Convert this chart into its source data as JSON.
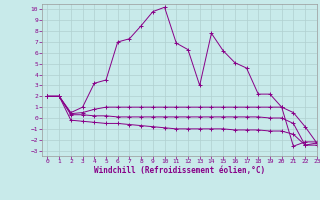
{
  "xlabel": "Windchill (Refroidissement éolien,°C)",
  "background_color": "#c8eaea",
  "grid_color": "#b0d0d0",
  "line_color": "#880088",
  "xlim": [
    -0.5,
    23
  ],
  "ylim": [
    -3.5,
    10.5
  ],
  "yticks": [
    -3,
    -2,
    -1,
    0,
    1,
    2,
    3,
    4,
    5,
    6,
    7,
    8,
    9,
    10
  ],
  "xticks": [
    0,
    1,
    2,
    3,
    4,
    5,
    6,
    7,
    8,
    9,
    10,
    11,
    12,
    13,
    14,
    15,
    16,
    17,
    18,
    19,
    20,
    21,
    22,
    23
  ],
  "line1_x": [
    0,
    1,
    2,
    3,
    4,
    5,
    6,
    7,
    8,
    9,
    10,
    11,
    12,
    13,
    14,
    15,
    16,
    17,
    18,
    19,
    20,
    21,
    22,
    23
  ],
  "line1_y": [
    2.0,
    2.0,
    0.5,
    1.0,
    3.2,
    3.5,
    7.0,
    7.3,
    8.5,
    9.8,
    10.2,
    6.9,
    6.3,
    3.0,
    7.8,
    6.2,
    5.1,
    4.6,
    2.2,
    2.2,
    1.0,
    -2.6,
    -2.2,
    -2.2
  ],
  "line2_x": [
    0,
    1,
    2,
    3,
    4,
    5,
    6,
    7,
    8,
    9,
    10,
    11,
    12,
    13,
    14,
    15,
    16,
    17,
    18,
    19,
    20,
    21,
    22,
    23
  ],
  "line2_y": [
    2.0,
    2.0,
    0.4,
    0.5,
    0.8,
    1.0,
    1.0,
    1.0,
    1.0,
    1.0,
    1.0,
    1.0,
    1.0,
    1.0,
    1.0,
    1.0,
    1.0,
    1.0,
    1.0,
    1.0,
    1.0,
    0.5,
    -0.8,
    -2.3
  ],
  "line3_x": [
    0,
    1,
    2,
    3,
    4,
    5,
    6,
    7,
    8,
    9,
    10,
    11,
    12,
    13,
    14,
    15,
    16,
    17,
    18,
    19,
    20,
    21,
    22,
    23
  ],
  "line3_y": [
    2.0,
    2.0,
    0.3,
    0.3,
    0.2,
    0.2,
    0.1,
    0.1,
    0.1,
    0.1,
    0.1,
    0.1,
    0.1,
    0.1,
    0.1,
    0.1,
    0.1,
    0.1,
    0.1,
    0.0,
    0.0,
    -0.5,
    -2.5,
    -2.3
  ],
  "line4_x": [
    0,
    1,
    2,
    3,
    4,
    5,
    6,
    7,
    8,
    9,
    10,
    11,
    12,
    13,
    14,
    15,
    16,
    17,
    18,
    19,
    20,
    21,
    22,
    23
  ],
  "line4_y": [
    2.0,
    2.0,
    -0.2,
    -0.3,
    -0.4,
    -0.5,
    -0.5,
    -0.6,
    -0.7,
    -0.8,
    -0.9,
    -1.0,
    -1.0,
    -1.0,
    -1.0,
    -1.0,
    -1.1,
    -1.1,
    -1.1,
    -1.2,
    -1.2,
    -1.5,
    -2.5,
    -2.5
  ]
}
